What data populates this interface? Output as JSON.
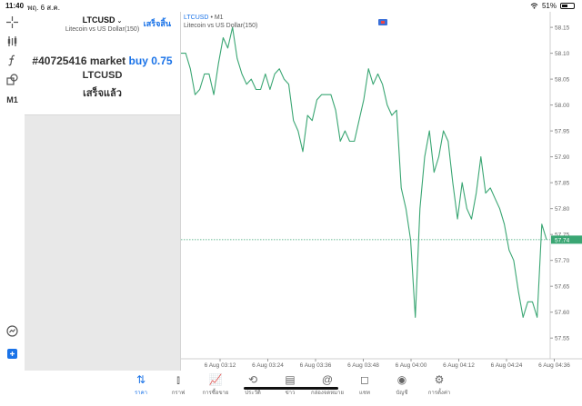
{
  "status_bar": {
    "time": "11:40",
    "date": "พฤ. 6 ส.ค.",
    "battery": "51%"
  },
  "left_toolbar": {
    "tools": [
      {
        "name": "crosshair-icon",
        "glyph": "+"
      },
      {
        "name": "indicators-icon",
        "glyph": "⫶"
      },
      {
        "name": "function-icon",
        "glyph": "ƒ"
      },
      {
        "name": "objects-icon",
        "glyph": "⧉"
      },
      {
        "name": "timeframe-label",
        "text": "M1"
      }
    ],
    "bottom_tools": [
      {
        "name": "trade-monitor-icon",
        "glyph": "◎"
      },
      {
        "name": "new-order-icon",
        "glyph": "⊞"
      }
    ]
  },
  "order_panel": {
    "symbol": "LTCUSD",
    "symbol_caret": "⌄",
    "description": "Litecoin vs US Dollar(150)",
    "done_label": "เสร็จสิ้น",
    "order_number": "#40725416 market",
    "order_side": "buy 0.75",
    "order_symbol": "LTCUSD",
    "order_status": "เสร็จแล้ว"
  },
  "chart_header": {
    "symbol": "LTCUSD",
    "timeframe": "• M1",
    "description": "Litecoin vs US Dollar(150)"
  },
  "chart_data": {
    "type": "line",
    "symbol": "LTCUSD",
    "timeframe": "M1",
    "color": "#3aa673",
    "current_price": 57.74,
    "current_price_label": "57.74",
    "ylim": [
      57.51,
      58.18
    ],
    "y_ticks": [
      58.15,
      58.1,
      58.05,
      58.0,
      57.95,
      57.9,
      57.85,
      57.8,
      57.75,
      57.7,
      57.65,
      57.6,
      57.55
    ],
    "x_labels": [
      "6 Aug 03:12",
      "6 Aug 03:24",
      "6 Aug 03:36",
      "6 Aug 03:48",
      "6 Aug 04:00",
      "6 Aug 04:12",
      "6 Aug 04:24",
      "6 Aug 04:36"
    ],
    "values": [
      58.1,
      58.1,
      58.07,
      58.02,
      58.03,
      58.06,
      58.06,
      58.02,
      58.08,
      58.13,
      58.11,
      58.15,
      58.09,
      58.06,
      58.04,
      58.05,
      58.03,
      58.03,
      58.06,
      58.03,
      58.06,
      58.07,
      58.05,
      58.04,
      57.97,
      57.95,
      57.91,
      57.98,
      57.97,
      58.01,
      58.02,
      58.02,
      58.02,
      57.99,
      57.93,
      57.95,
      57.93,
      57.93,
      57.97,
      58.01,
      58.07,
      58.04,
      58.06,
      58.04,
      58.0,
      57.98,
      57.99,
      57.84,
      57.8,
      57.74,
      57.59,
      57.8,
      57.9,
      57.95,
      57.87,
      57.9,
      57.95,
      57.93,
      57.85,
      57.78,
      57.85,
      57.8,
      57.78,
      57.83,
      57.9,
      57.83,
      57.84,
      57.82,
      57.8,
      57.77,
      57.72,
      57.7,
      57.64,
      57.59,
      57.62,
      57.62,
      57.59,
      57.77,
      57.74
    ]
  },
  "bottom_nav": {
    "items": [
      {
        "name": "nav-quotes",
        "icon": "⇅",
        "label": "ราคา",
        "active": true
      },
      {
        "name": "nav-chart",
        "icon": "⫾",
        "label": "กราฟ",
        "active": false
      },
      {
        "name": "nav-trade",
        "icon": "📈",
        "label": "การซื้อขาย",
        "active": false
      },
      {
        "name": "nav-history",
        "icon": "⟲",
        "label": "ประวัติ",
        "active": false
      },
      {
        "name": "nav-news",
        "icon": "▤",
        "label": "ข่าว",
        "active": false
      },
      {
        "name": "nav-mailbox",
        "icon": "@",
        "label": "กล่องจดหมาย",
        "active": false
      },
      {
        "name": "nav-chat",
        "icon": "◻",
        "label": "แชท",
        "active": false
      },
      {
        "name": "nav-accounts",
        "icon": "◉",
        "label": "บัญชี",
        "active": false
      },
      {
        "name": "nav-settings",
        "icon": "⚙",
        "label": "การตั้งค่า",
        "active": false
      }
    ]
  }
}
